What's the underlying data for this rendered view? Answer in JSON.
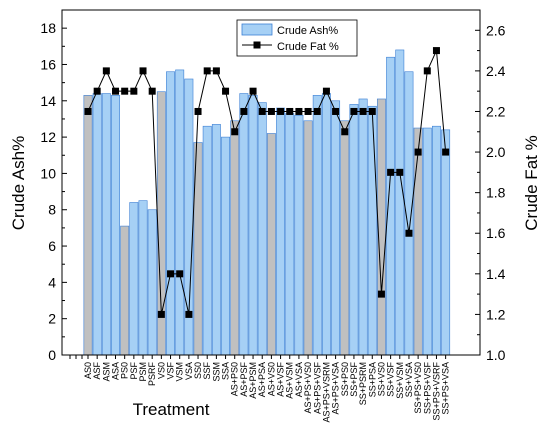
{
  "chart_data": {
    "type": "bar+line",
    "xlabel": "Treatment",
    "ylabel_left": "Crude Ash%",
    "ylabel_right": "Crude Fat %",
    "ylim_left": [
      0,
      19
    ],
    "ylim_right": [
      1.0,
      2.7
    ],
    "yticks_left": [
      "0",
      "2",
      "4",
      "6",
      "8",
      "10",
      "12",
      "14",
      "16",
      "18"
    ],
    "yticks_right": [
      "1.0",
      "1.2",
      "1.4",
      "1.6",
      "1.8",
      "2.0",
      "2.2",
      "2.4",
      "2.6"
    ],
    "legend_position": "top-center",
    "colors": {
      "bar_blue": "#a6d0f5",
      "bar_gray": "#c0c0c0",
      "bar_stroke": "#3b7fd4",
      "line": "#000000",
      "marker": "#000000"
    },
    "categories": [
      "AS0",
      "ASF",
      "ASM",
      "ASA",
      "PS0",
      "PSF",
      "PSM",
      "PSRF",
      "VS0",
      "VSF",
      "VSM",
      "VSA",
      "SS0",
      "SSF",
      "SSM",
      "SSA",
      "AS+PS0",
      "AS+PSF",
      "AS+PSM",
      "AS+PSA",
      "AS+VS0",
      "AS+VSF",
      "AS+VSM",
      "AS+VSA",
      "AS+PS+VS0",
      "AS+PS+VSF",
      "AS+PS+VSRM",
      "AS+PS+VSA",
      "SS+PS0",
      "SS+PSF",
      "SS+PSRM",
      "SS+PSA",
      "SS+VS0",
      "SS+VSF",
      "SS+VSM",
      "SS+VSA",
      "SS+PS+VS0",
      "SS+PS+VSF",
      "SS+PS+VSRF",
      "SS+PS+VSA"
    ],
    "series": [
      {
        "name": "Crude Ash%",
        "kind": "bar",
        "axis": "left",
        "values": [
          14.3,
          14.4,
          14.4,
          14.3,
          7.1,
          8.4,
          8.5,
          8.0,
          14.5,
          15.6,
          15.7,
          15.2,
          11.7,
          12.6,
          12.7,
          12.0,
          12.9,
          14.4,
          14.3,
          13.9,
          12.2,
          13.6,
          13.3,
          13.2,
          12.9,
          14.3,
          14.4,
          14.0,
          12.9,
          13.8,
          14.1,
          13.7,
          14.1,
          16.4,
          16.8,
          15.6,
          12.5,
          12.5,
          12.6,
          12.4
        ]
      },
      {
        "name": "Crude Fat %",
        "kind": "line",
        "axis": "right",
        "values": [
          2.2,
          2.3,
          2.4,
          2.3,
          2.3,
          2.3,
          2.4,
          2.3,
          1.2,
          1.4,
          1.4,
          1.2,
          2.2,
          2.4,
          2.4,
          2.3,
          2.1,
          2.2,
          2.3,
          2.2,
          2.2,
          2.2,
          2.2,
          2.2,
          2.2,
          2.2,
          2.3,
          2.2,
          2.1,
          2.2,
          2.2,
          2.2,
          1.3,
          1.9,
          1.9,
          1.6,
          2.0,
          2.4,
          2.5,
          2.0
        ]
      }
    ],
    "gray_bar_indices": [
      0,
      4,
      8,
      12,
      16,
      20,
      24,
      28,
      32,
      36
    ]
  }
}
